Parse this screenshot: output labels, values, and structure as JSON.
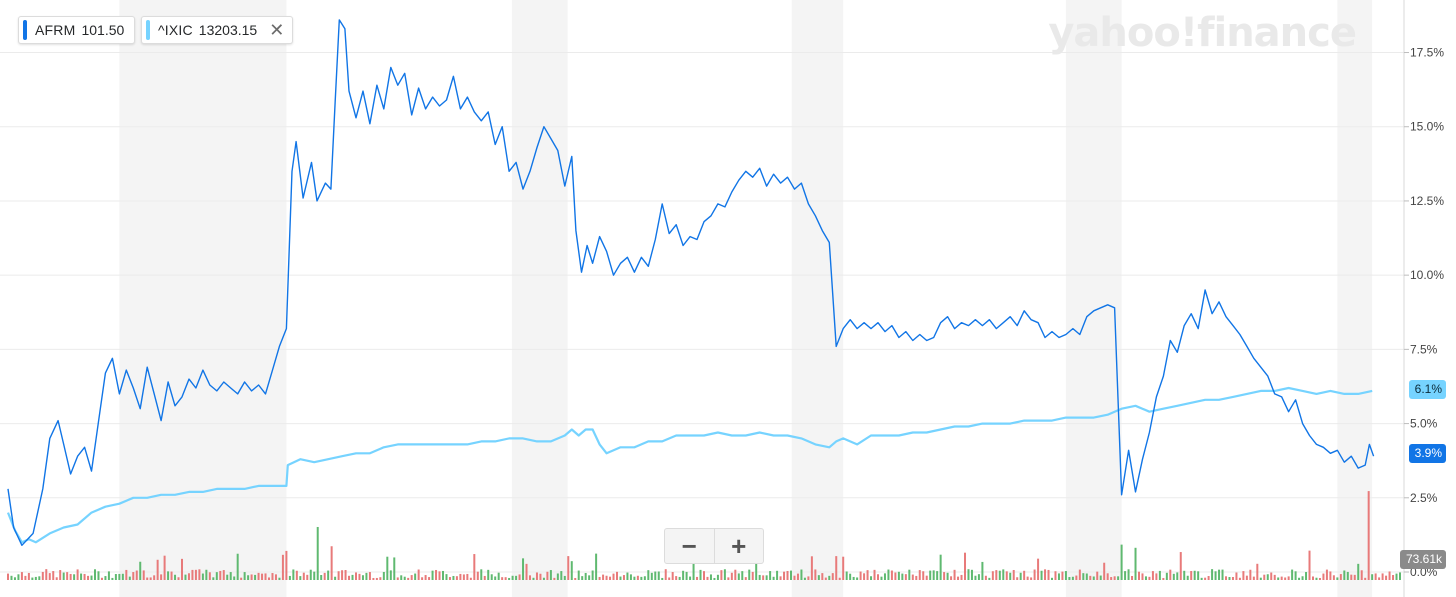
{
  "legend": [
    {
      "symbol": "AFRM",
      "value": "101.50",
      "color": "#1175e6"
    },
    {
      "symbol": "^IXIC",
      "value": "13203.15",
      "color": "#76d3ff",
      "close_icon": "close-icon"
    }
  ],
  "watermark": "yahoo!finance",
  "zoom": {
    "minus": "−",
    "plus": "+"
  },
  "badges": {
    "ixic": "6.1%",
    "afrm": "3.9%",
    "volume": "73.61k"
  },
  "chart_data": {
    "type": "line",
    "y_unit": "percent change",
    "y_ticks": [
      "17.5%",
      "15.0%",
      "12.5%",
      "10.0%",
      "7.5%",
      "5.0%",
      "2.5%",
      "0.0%"
    ],
    "ylim": [
      0,
      19
    ],
    "grid": true,
    "shaded_columns": true,
    "series": [
      {
        "name": "AFRM",
        "color": "#1175e6",
        "points": [
          [
            0,
            2.8
          ],
          [
            0.004,
            1.5
          ],
          [
            0.01,
            0.9
          ],
          [
            0.018,
            1.3
          ],
          [
            0.025,
            2.8
          ],
          [
            0.03,
            4.5
          ],
          [
            0.036,
            5.1
          ],
          [
            0.04,
            4.3
          ],
          [
            0.045,
            3.3
          ],
          [
            0.05,
            3.9
          ],
          [
            0.055,
            4.2
          ],
          [
            0.06,
            3.4
          ],
          [
            0.066,
            5.4
          ],
          [
            0.07,
            6.7
          ],
          [
            0.075,
            7.2
          ],
          [
            0.08,
            6.0
          ],
          [
            0.085,
            6.8
          ],
          [
            0.09,
            6.2
          ],
          [
            0.095,
            5.5
          ],
          [
            0.1,
            6.9
          ],
          [
            0.105,
            6.0
          ],
          [
            0.11,
            5.1
          ],
          [
            0.115,
            6.4
          ],
          [
            0.12,
            5.6
          ],
          [
            0.125,
            5.9
          ],
          [
            0.13,
            6.5
          ],
          [
            0.135,
            6.2
          ],
          [
            0.14,
            6.8
          ],
          [
            0.145,
            6.3
          ],
          [
            0.15,
            6.1
          ],
          [
            0.155,
            6.4
          ],
          [
            0.16,
            6.2
          ],
          [
            0.165,
            6.0
          ],
          [
            0.17,
            6.4
          ],
          [
            0.175,
            6.1
          ],
          [
            0.18,
            6.3
          ],
          [
            0.185,
            6.0
          ],
          [
            0.19,
            6.8
          ],
          [
            0.195,
            7.6
          ],
          [
            0.2,
            8.2
          ],
          [
            0.204,
            13.5
          ],
          [
            0.207,
            14.5
          ],
          [
            0.212,
            12.6
          ],
          [
            0.218,
            13.8
          ],
          [
            0.222,
            12.5
          ],
          [
            0.228,
            13.1
          ],
          [
            0.232,
            12.9
          ],
          [
            0.235,
            15.8
          ],
          [
            0.238,
            18.6
          ],
          [
            0.242,
            18.3
          ],
          [
            0.245,
            16.2
          ],
          [
            0.25,
            15.3
          ],
          [
            0.255,
            16.2
          ],
          [
            0.26,
            15.1
          ],
          [
            0.265,
            16.4
          ],
          [
            0.27,
            15.6
          ],
          [
            0.275,
            17.0
          ],
          [
            0.28,
            16.4
          ],
          [
            0.285,
            16.8
          ],
          [
            0.29,
            15.4
          ],
          [
            0.295,
            16.3
          ],
          [
            0.3,
            15.6
          ],
          [
            0.305,
            16.0
          ],
          [
            0.31,
            15.7
          ],
          [
            0.315,
            15.9
          ],
          [
            0.32,
            16.7
          ],
          [
            0.325,
            15.6
          ],
          [
            0.33,
            16.0
          ],
          [
            0.335,
            15.5
          ],
          [
            0.34,
            15.2
          ],
          [
            0.345,
            15.5
          ],
          [
            0.35,
            14.4
          ],
          [
            0.355,
            15.0
          ],
          [
            0.36,
            13.5
          ],
          [
            0.365,
            13.8
          ],
          [
            0.37,
            12.9
          ],
          [
            0.375,
            13.5
          ],
          [
            0.38,
            14.3
          ],
          [
            0.385,
            15.0
          ],
          [
            0.39,
            14.6
          ],
          [
            0.395,
            14.2
          ],
          [
            0.4,
            13.0
          ],
          [
            0.405,
            14.0
          ],
          [
            0.408,
            11.5
          ],
          [
            0.412,
            10.1
          ],
          [
            0.416,
            11.0
          ],
          [
            0.42,
            10.4
          ],
          [
            0.425,
            11.3
          ],
          [
            0.43,
            10.8
          ],
          [
            0.435,
            10.0
          ],
          [
            0.44,
            10.4
          ],
          [
            0.445,
            10.6
          ],
          [
            0.45,
            10.1
          ],
          [
            0.455,
            10.6
          ],
          [
            0.46,
            10.3
          ],
          [
            0.465,
            11.2
          ],
          [
            0.47,
            12.4
          ],
          [
            0.475,
            11.4
          ],
          [
            0.48,
            11.7
          ],
          [
            0.485,
            11.0
          ],
          [
            0.49,
            11.3
          ],
          [
            0.495,
            11.2
          ],
          [
            0.5,
            11.8
          ],
          [
            0.505,
            12.0
          ],
          [
            0.51,
            12.4
          ],
          [
            0.515,
            12.3
          ],
          [
            0.52,
            12.8
          ],
          [
            0.525,
            13.2
          ],
          [
            0.53,
            13.5
          ],
          [
            0.535,
            13.3
          ],
          [
            0.54,
            13.6
          ],
          [
            0.545,
            13.0
          ],
          [
            0.55,
            13.4
          ],
          [
            0.555,
            13.1
          ],
          [
            0.56,
            13.3
          ],
          [
            0.565,
            12.9
          ],
          [
            0.57,
            13.1
          ],
          [
            0.575,
            12.4
          ],
          [
            0.58,
            12.0
          ],
          [
            0.585,
            11.5
          ],
          [
            0.59,
            11.1
          ],
          [
            0.595,
            7.6
          ],
          [
            0.6,
            8.2
          ],
          [
            0.605,
            8.5
          ],
          [
            0.61,
            8.2
          ],
          [
            0.615,
            8.4
          ],
          [
            0.62,
            8.2
          ],
          [
            0.625,
            8.4
          ],
          [
            0.63,
            8.1
          ],
          [
            0.635,
            8.3
          ],
          [
            0.64,
            7.9
          ],
          [
            0.645,
            8.1
          ],
          [
            0.65,
            7.8
          ],
          [
            0.655,
            8.0
          ],
          [
            0.66,
            7.8
          ],
          [
            0.665,
            7.9
          ],
          [
            0.67,
            8.4
          ],
          [
            0.675,
            8.6
          ],
          [
            0.68,
            8.2
          ],
          [
            0.685,
            8.4
          ],
          [
            0.69,
            8.3
          ],
          [
            0.695,
            8.5
          ],
          [
            0.7,
            8.3
          ],
          [
            0.705,
            8.5
          ],
          [
            0.71,
            8.2
          ],
          [
            0.715,
            8.4
          ],
          [
            0.72,
            8.6
          ],
          [
            0.725,
            8.3
          ],
          [
            0.73,
            8.8
          ],
          [
            0.735,
            8.5
          ],
          [
            0.74,
            8.4
          ],
          [
            0.745,
            7.9
          ],
          [
            0.75,
            8.1
          ],
          [
            0.755,
            7.9
          ],
          [
            0.76,
            8.0
          ],
          [
            0.765,
            8.2
          ],
          [
            0.77,
            8.0
          ],
          [
            0.775,
            8.6
          ],
          [
            0.78,
            8.8
          ],
          [
            0.785,
            8.9
          ],
          [
            0.79,
            9.0
          ],
          [
            0.795,
            8.9
          ],
          [
            0.8,
            2.6
          ],
          [
            0.805,
            4.1
          ],
          [
            0.81,
            2.7
          ],
          [
            0.815,
            3.8
          ],
          [
            0.82,
            4.7
          ],
          [
            0.825,
            5.9
          ],
          [
            0.83,
            6.6
          ],
          [
            0.835,
            7.8
          ],
          [
            0.84,
            7.4
          ],
          [
            0.845,
            8.3
          ],
          [
            0.85,
            8.7
          ],
          [
            0.855,
            8.2
          ],
          [
            0.86,
            9.5
          ],
          [
            0.865,
            8.7
          ],
          [
            0.87,
            9.1
          ],
          [
            0.875,
            8.6
          ],
          [
            0.88,
            8.3
          ],
          [
            0.885,
            8.0
          ],
          [
            0.89,
            7.6
          ],
          [
            0.895,
            7.2
          ],
          [
            0.9,
            6.9
          ],
          [
            0.905,
            6.6
          ],
          [
            0.91,
            6.0
          ],
          [
            0.915,
            5.9
          ],
          [
            0.92,
            5.4
          ],
          [
            0.925,
            5.8
          ],
          [
            0.93,
            5.0
          ],
          [
            0.935,
            4.6
          ],
          [
            0.94,
            4.3
          ],
          [
            0.945,
            4.2
          ],
          [
            0.95,
            4.0
          ],
          [
            0.955,
            4.1
          ],
          [
            0.96,
            3.7
          ],
          [
            0.965,
            3.9
          ],
          [
            0.97,
            3.5
          ],
          [
            0.975,
            3.6
          ],
          [
            0.978,
            4.3
          ],
          [
            0.981,
            3.9
          ]
        ]
      },
      {
        "name": "^IXIC",
        "color": "#76d3ff",
        "points": [
          [
            0,
            2.0
          ],
          [
            0.005,
            1.4
          ],
          [
            0.01,
            1.0
          ],
          [
            0.015,
            1.1
          ],
          [
            0.02,
            1.0
          ],
          [
            0.03,
            1.3
          ],
          [
            0.04,
            1.5
          ],
          [
            0.05,
            1.6
          ],
          [
            0.06,
            2.0
          ],
          [
            0.07,
            2.2
          ],
          [
            0.08,
            2.3
          ],
          [
            0.09,
            2.5
          ],
          [
            0.1,
            2.5
          ],
          [
            0.11,
            2.6
          ],
          [
            0.12,
            2.6
          ],
          [
            0.13,
            2.7
          ],
          [
            0.14,
            2.7
          ],
          [
            0.15,
            2.8
          ],
          [
            0.16,
            2.8
          ],
          [
            0.17,
            2.8
          ],
          [
            0.18,
            2.9
          ],
          [
            0.19,
            2.9
          ],
          [
            0.2,
            2.9
          ],
          [
            0.201,
            3.6
          ],
          [
            0.21,
            3.8
          ],
          [
            0.22,
            3.7
          ],
          [
            0.23,
            3.8
          ],
          [
            0.24,
            3.9
          ],
          [
            0.25,
            4.0
          ],
          [
            0.26,
            4.0
          ],
          [
            0.27,
            4.2
          ],
          [
            0.28,
            4.3
          ],
          [
            0.29,
            4.3
          ],
          [
            0.3,
            4.3
          ],
          [
            0.31,
            4.3
          ],
          [
            0.32,
            4.3
          ],
          [
            0.33,
            4.3
          ],
          [
            0.34,
            4.4
          ],
          [
            0.35,
            4.4
          ],
          [
            0.36,
            4.5
          ],
          [
            0.37,
            4.5
          ],
          [
            0.38,
            4.4
          ],
          [
            0.39,
            4.4
          ],
          [
            0.4,
            4.6
          ],
          [
            0.405,
            4.8
          ],
          [
            0.41,
            4.6
          ],
          [
            0.415,
            4.8
          ],
          [
            0.42,
            4.8
          ],
          [
            0.425,
            4.3
          ],
          [
            0.43,
            4.0
          ],
          [
            0.44,
            4.2
          ],
          [
            0.45,
            4.2
          ],
          [
            0.46,
            4.4
          ],
          [
            0.47,
            4.4
          ],
          [
            0.48,
            4.6
          ],
          [
            0.49,
            4.6
          ],
          [
            0.5,
            4.6
          ],
          [
            0.51,
            4.7
          ],
          [
            0.52,
            4.6
          ],
          [
            0.53,
            4.6
          ],
          [
            0.54,
            4.7
          ],
          [
            0.55,
            4.6
          ],
          [
            0.56,
            4.6
          ],
          [
            0.57,
            4.5
          ],
          [
            0.58,
            4.3
          ],
          [
            0.59,
            4.2
          ],
          [
            0.595,
            4.4
          ],
          [
            0.6,
            4.5
          ],
          [
            0.61,
            4.3
          ],
          [
            0.62,
            4.6
          ],
          [
            0.63,
            4.6
          ],
          [
            0.64,
            4.6
          ],
          [
            0.65,
            4.7
          ],
          [
            0.66,
            4.7
          ],
          [
            0.67,
            4.8
          ],
          [
            0.68,
            4.9
          ],
          [
            0.69,
            4.9
          ],
          [
            0.7,
            5.0
          ],
          [
            0.71,
            5.0
          ],
          [
            0.72,
            5.0
          ],
          [
            0.73,
            5.1
          ],
          [
            0.74,
            5.1
          ],
          [
            0.75,
            5.1
          ],
          [
            0.76,
            5.2
          ],
          [
            0.77,
            5.2
          ],
          [
            0.78,
            5.2
          ],
          [
            0.79,
            5.3
          ],
          [
            0.795,
            5.4
          ],
          [
            0.8,
            5.5
          ],
          [
            0.81,
            5.6
          ],
          [
            0.82,
            5.4
          ],
          [
            0.83,
            5.5
          ],
          [
            0.84,
            5.6
          ],
          [
            0.85,
            5.7
          ],
          [
            0.86,
            5.8
          ],
          [
            0.87,
            5.8
          ],
          [
            0.88,
            5.9
          ],
          [
            0.89,
            6.0
          ],
          [
            0.9,
            6.1
          ],
          [
            0.91,
            6.1
          ],
          [
            0.92,
            6.2
          ],
          [
            0.93,
            6.1
          ],
          [
            0.94,
            6.0
          ],
          [
            0.95,
            6.1
          ],
          [
            0.96,
            6.0
          ],
          [
            0.97,
            6.0
          ],
          [
            0.98,
            6.1
          ]
        ]
      }
    ]
  }
}
